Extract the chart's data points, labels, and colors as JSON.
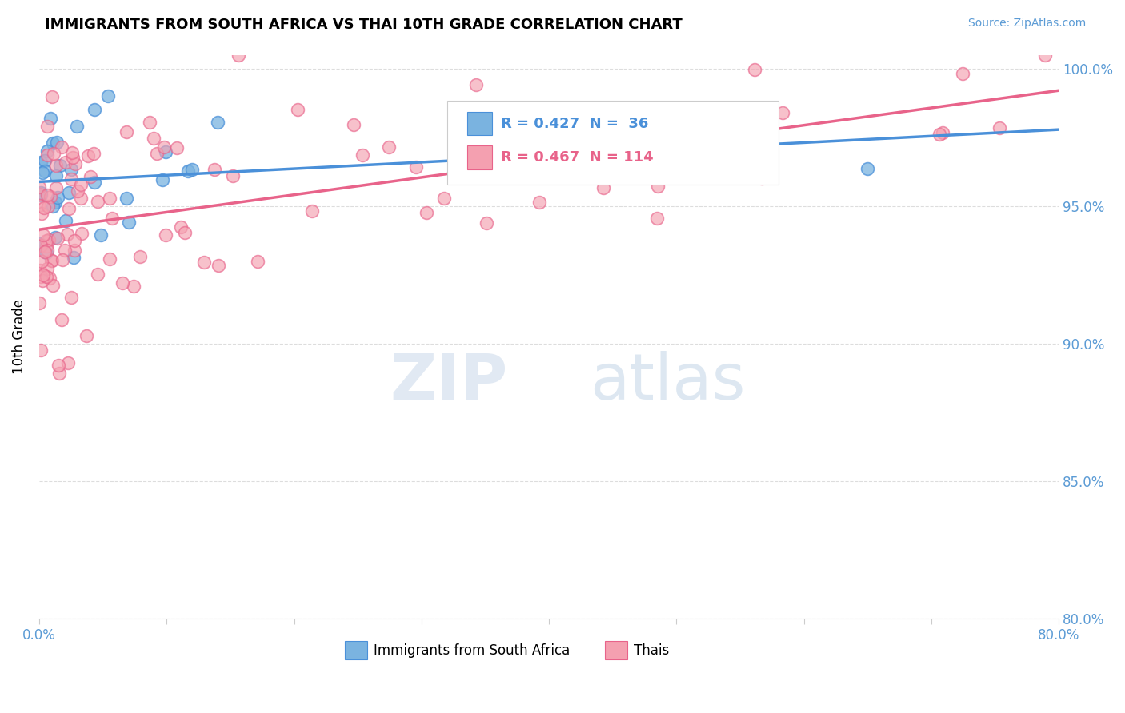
{
  "title": "IMMIGRANTS FROM SOUTH AFRICA VS THAI 10TH GRADE CORRELATION CHART",
  "source": "Source: ZipAtlas.com",
  "ylabel": "10th Grade",
  "xmin": 0.0,
  "xmax": 0.8,
  "ymin": 0.8,
  "ymax": 1.005,
  "ytick_labels": [
    "80.0%",
    "85.0%",
    "90.0%",
    "95.0%",
    "100.0%"
  ],
  "ytick_vals": [
    0.8,
    0.85,
    0.9,
    0.95,
    1.0
  ],
  "xtick_vals": [
    0.0,
    0.1,
    0.2,
    0.3,
    0.4,
    0.5,
    0.6,
    0.7,
    0.8
  ],
  "legend_label1": "Immigrants from South Africa",
  "legend_label2": "Thais",
  "r1": 0.427,
  "n1": 36,
  "r2": 0.467,
  "n2": 114,
  "color_blue": "#7ab3e0",
  "color_pink": "#f4a0b0",
  "line_color_blue": "#4a90d9",
  "line_color_pink": "#e8638a",
  "axis_color": "#5b9bd5",
  "watermark_zip": "ZIP",
  "watermark_atlas": "atlas"
}
